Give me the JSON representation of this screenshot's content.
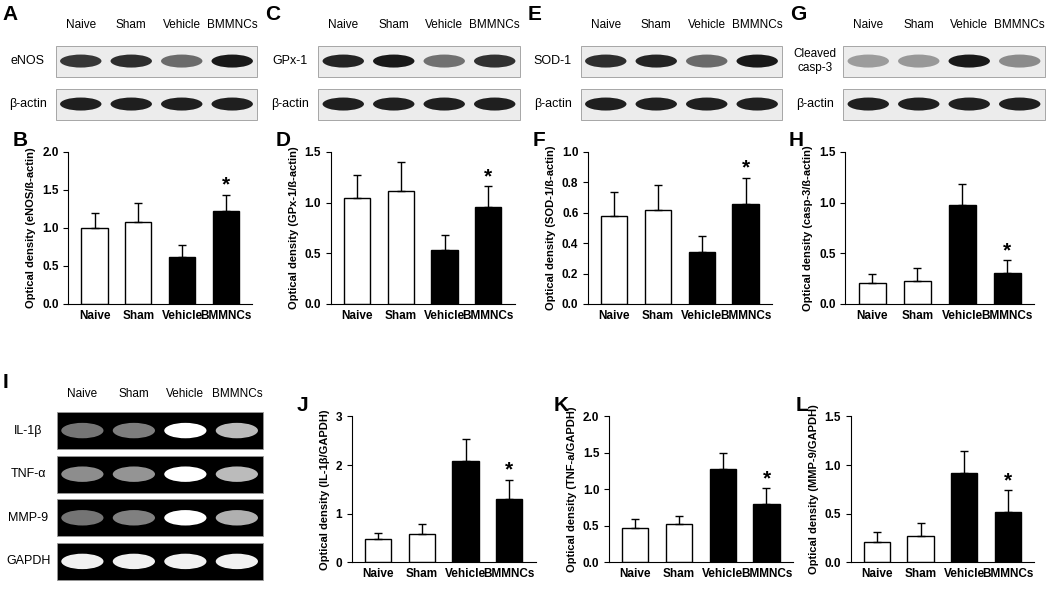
{
  "chart_data": [
    {
      "type": "bar",
      "title": "B",
      "categories": [
        "Naive",
        "Sham",
        "Vehicle",
        "BMMNCs"
      ],
      "values": [
        1.0,
        1.08,
        0.62,
        1.22
      ],
      "errors": [
        0.2,
        0.25,
        0.15,
        0.22
      ],
      "colors": [
        "#ffffff",
        "#ffffff",
        "#000000",
        "#000000"
      ],
      "ylabel": "Optical density (eNOS/ß-actin)",
      "ylim": [
        0,
        2
      ],
      "yticks": [
        {
          "value": 0,
          "label": "0.0"
        },
        {
          "value": 0.5,
          "label": "0.5"
        },
        {
          "value": 1,
          "label": "1.0"
        },
        {
          "value": 1.5,
          "label": "1.5"
        },
        {
          "value": 2,
          "label": "2.0"
        }
      ],
      "annotations": [
        {
          "category": "BMMNCs",
          "text": "*"
        }
      ]
    },
    {
      "type": "bar",
      "title": "D",
      "categories": [
        "Naive",
        "Sham",
        "Vehicle",
        "BMMNCs"
      ],
      "values": [
        1.05,
        1.12,
        0.53,
        0.96
      ],
      "errors": [
        0.22,
        0.28,
        0.15,
        0.2
      ],
      "colors": [
        "#ffffff",
        "#ffffff",
        "#000000",
        "#000000"
      ],
      "ylabel": "Optical density (GPx-1/ß-actin)",
      "ylim": [
        0,
        1.5
      ],
      "yticks": [
        {
          "value": 0,
          "label": "0.0"
        },
        {
          "value": 0.5,
          "label": "0.5"
        },
        {
          "value": 1,
          "label": "1.0"
        },
        {
          "value": 1.5,
          "label": "1.5"
        }
      ],
      "annotations": [
        {
          "category": "BMMNCs",
          "text": "*"
        }
      ]
    },
    {
      "type": "bar",
      "title": "F",
      "categories": [
        "Naive",
        "Sham",
        "Vehicle",
        "BMMNCs"
      ],
      "values": [
        0.58,
        0.62,
        0.34,
        0.66
      ],
      "errors": [
        0.16,
        0.16,
        0.11,
        0.17
      ],
      "colors": [
        "#ffffff",
        "#ffffff",
        "#000000",
        "#000000"
      ],
      "ylabel": "Optical density (SOD-1/ß-actin)",
      "ylim": [
        0,
        1
      ],
      "yticks": [
        {
          "value": 0,
          "label": "0.0"
        },
        {
          "value": 0.2,
          "label": "0.2"
        },
        {
          "value": 0.4,
          "label": "0.4"
        },
        {
          "value": 0.6,
          "label": "0.6"
        },
        {
          "value": 0.8,
          "label": "0.8"
        },
        {
          "value": 1,
          "label": "1.0"
        }
      ],
      "annotations": [
        {
          "category": "BMMNCs",
          "text": "*"
        }
      ]
    },
    {
      "type": "bar",
      "title": "H",
      "categories": [
        "Naive",
        "Sham",
        "Vehicle",
        "BMMNCs"
      ],
      "values": [
        0.21,
        0.23,
        0.98,
        0.31
      ],
      "errors": [
        0.09,
        0.13,
        0.2,
        0.12
      ],
      "colors": [
        "#ffffff",
        "#ffffff",
        "#000000",
        "#000000"
      ],
      "ylabel": "Optical density (casp-3/ß-actin)",
      "ylim": [
        0,
        1.5
      ],
      "yticks": [
        {
          "value": 0,
          "label": "0.0"
        },
        {
          "value": 0.5,
          "label": "0.5"
        },
        {
          "value": 1,
          "label": "1.0"
        },
        {
          "value": 1.5,
          "label": "1.5"
        }
      ],
      "annotations": [
        {
          "category": "BMMNCs",
          "text": "*"
        }
      ]
    },
    {
      "type": "bar",
      "title": "J",
      "categories": [
        "Naive",
        "Sham",
        "Vehicle",
        "BMMNCs"
      ],
      "values": [
        0.48,
        0.58,
        2.08,
        1.3
      ],
      "errors": [
        0.12,
        0.2,
        0.45,
        0.4
      ],
      "colors": [
        "#ffffff",
        "#ffffff",
        "#000000",
        "#000000"
      ],
      "ylabel": "Optical density (IL-1β/GAPDH)",
      "ylim": [
        0,
        3
      ],
      "yticks": [
        0,
        1,
        2,
        3
      ],
      "annotations": [
        {
          "category": "BMMNCs",
          "text": "*"
        }
      ]
    },
    {
      "type": "bar",
      "title": "K",
      "categories": [
        "Naive",
        "Sham",
        "Vehicle",
        "BMMNCs"
      ],
      "values": [
        0.47,
        0.52,
        1.28,
        0.8
      ],
      "errors": [
        0.12,
        0.12,
        0.22,
        0.22
      ],
      "colors": [
        "#ffffff",
        "#ffffff",
        "#000000",
        "#000000"
      ],
      "ylabel": "Optical density (TNF-a/GAPDH)",
      "ylim": [
        0,
        2
      ],
      "yticks": [
        {
          "value": 0,
          "label": "0.0"
        },
        {
          "value": 0.5,
          "label": "0.5"
        },
        {
          "value": 1,
          "label": "1.0"
        },
        {
          "value": 1.5,
          "label": "1.5"
        },
        {
          "value": 2,
          "label": "2.0"
        }
      ],
      "annotations": [
        {
          "category": "BMMNCs",
          "text": "*"
        }
      ]
    },
    {
      "type": "bar",
      "title": "L",
      "categories": [
        "Naive",
        "Sham",
        "Vehicle",
        "BMMNCs"
      ],
      "values": [
        0.21,
        0.27,
        0.92,
        0.52
      ],
      "errors": [
        0.1,
        0.14,
        0.23,
        0.22
      ],
      "colors": [
        "#ffffff",
        "#ffffff",
        "#000000",
        "#000000"
      ],
      "ylabel": "Optical density (MMP-9/GAPDH)",
      "ylim": [
        0,
        1.5
      ],
      "yticks": [
        {
          "value": 0,
          "label": "0.0"
        },
        {
          "value": 0.5,
          "label": "0.5"
        },
        {
          "value": 1,
          "label": "1.0"
        },
        {
          "value": 1.5,
          "label": "1.5"
        }
      ],
      "annotations": [
        {
          "category": "BMMNCs",
          "text": "*"
        }
      ]
    }
  ],
  "blots": [
    {
      "title": "A",
      "type": "western_blot",
      "lanes": [
        "Naive",
        "Sham",
        "Vehicle",
        "BMMNCs"
      ],
      "rows": [
        "eNOS",
        "β-actin"
      ]
    },
    {
      "title": "C",
      "type": "western_blot",
      "lanes": [
        "Naive",
        "Sham",
        "Vehicle",
        "BMMNCs"
      ],
      "rows": [
        "GPx-1",
        "β-actin"
      ]
    },
    {
      "title": "E",
      "type": "western_blot",
      "lanes": [
        "Naive",
        "Sham",
        "Vehicle",
        "BMMNCs"
      ],
      "rows": [
        "SOD-1",
        "β-actin"
      ]
    },
    {
      "title": "G",
      "type": "western_blot",
      "lanes": [
        "Naive",
        "Sham",
        "Vehicle",
        "BMMNCs"
      ],
      "rows": [
        "Cleaved\ncasp-3",
        "β-actin"
      ]
    },
    {
      "title": "I",
      "type": "rt_pcr",
      "lanes": [
        "Naive",
        "Sham",
        "Vehicle",
        "BMMNCs"
      ],
      "rows": [
        "IL-1β",
        "TNF-α",
        "MMP-9",
        "GAPDH"
      ]
    }
  ]
}
